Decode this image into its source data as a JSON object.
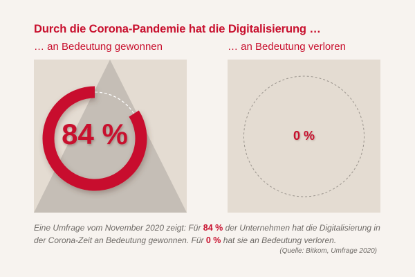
{
  "header": {
    "title": "Durch die Corona-Pandemie hat die Digitalisierung …",
    "subtitle_left": "… an Bedeutung gewonnen",
    "subtitle_right": "… an Bedeutung verloren"
  },
  "colors": {
    "accent": "#c8102e",
    "panel": "#e4dcd2",
    "page_background": "#f7f3ef",
    "triangle": "#c5beb6",
    "track": "#ffffff",
    "empty_ring": "#9a948d",
    "text_gray": "#6e6a66"
  },
  "chart_data": [
    {
      "type": "pie",
      "style": "donut-ring",
      "value_percent": 84,
      "label": "84 %",
      "series_name": "… an Bedeutung gewonnen",
      "background_graphic": "triangle"
    },
    {
      "type": "pie",
      "style": "donut-ring",
      "value_percent": 0,
      "label": "0 %",
      "series_name": "… an Bedeutung verloren"
    }
  ],
  "caption": {
    "part1": "Eine Umfrage vom November 2020 zeigt: Für ",
    "highlight1": "84 %",
    "part2": " der Unternehmen hat die Digitalisierung in der Corona-Zeit an Bedeutung gewonnen. Für ",
    "highlight2": "0 %",
    "part3": " hat sie an Bedeutung verloren.",
    "source": "(Quelle: Bitkom, Umfrage 2020)"
  }
}
